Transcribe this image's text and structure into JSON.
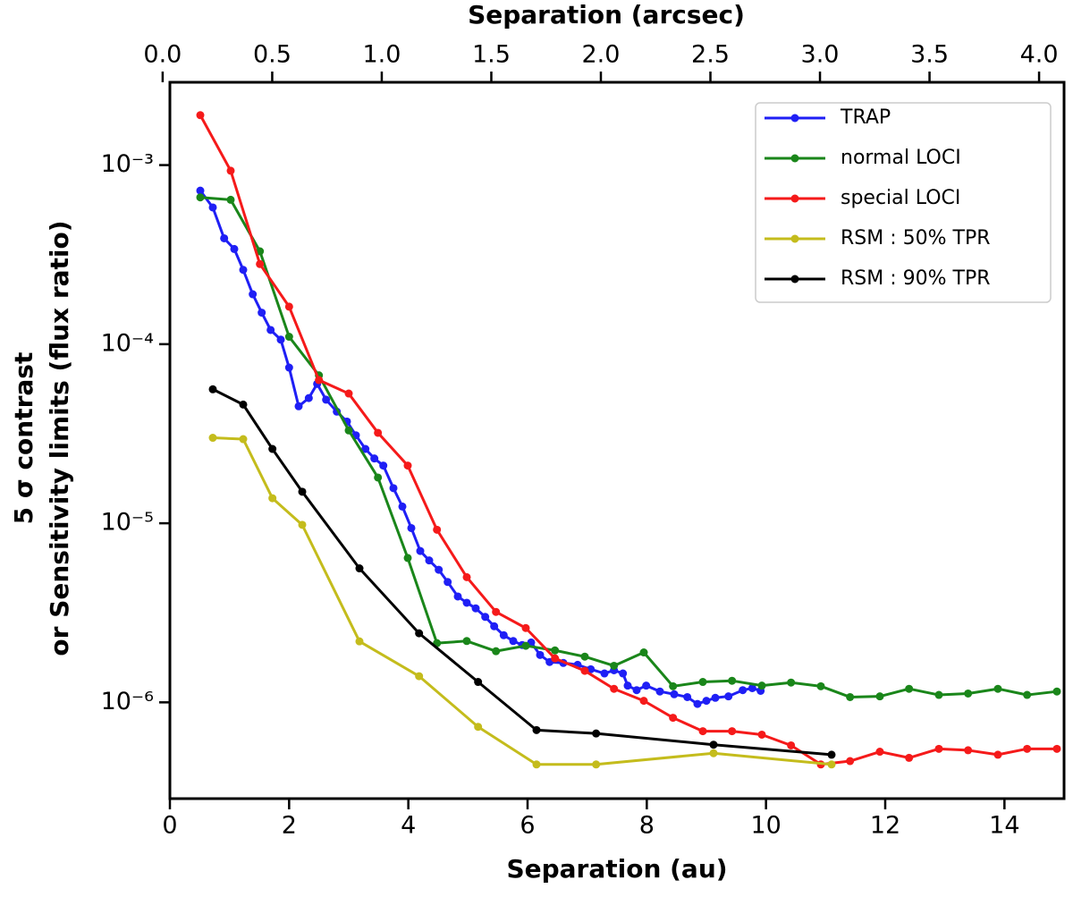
{
  "chart_data": {
    "type": "line",
    "xlabel": "Separation (au)",
    "x2label": "Separation (arcsec)",
    "ylabel": [
      "5 σ contrast",
      "or Sensitivity limits (flux ratio)"
    ],
    "xlim": [
      0,
      15
    ],
    "xticks": [
      0,
      2,
      4,
      6,
      8,
      10,
      12,
      14
    ],
    "x2lim": [
      0.033,
      4.114
    ],
    "x2ticks": [
      {
        "value": 0.0,
        "label": "0.0"
      },
      0.5,
      {
        "value": 1.0,
        "label": "1.0"
      },
      1.5,
      {
        "value": 2.0,
        "label": "2.0"
      },
      2.5,
      {
        "value": 3.0,
        "label": "3.0"
      },
      3.5,
      {
        "value": 4.0,
        "label": "4.0"
      }
    ],
    "ylim": [
      2.9e-07,
      0.0029
    ],
    "yscale": "log",
    "yticks": [
      {
        "value": 0.001,
        "label": "10⁻³"
      },
      {
        "value": 0.0001,
        "label": "10⁻⁴"
      },
      {
        "value": 1e-05,
        "label": "10⁻⁵"
      },
      {
        "value": 1e-06,
        "label": "10⁻⁶"
      }
    ],
    "legend": "upper right",
    "series": [
      {
        "name": "TRAP",
        "color": "#1f1ff5",
        "x": [
          0.51,
          0.72,
          0.91,
          1.08,
          1.23,
          1.39,
          1.54,
          1.69,
          1.86,
          2.0,
          2.16,
          2.33,
          2.47,
          2.62,
          2.8,
          2.97,
          3.12,
          3.28,
          3.43,
          3.58,
          3.75,
          3.9,
          4.05,
          4.2,
          4.35,
          4.51,
          4.66,
          4.83,
          4.98,
          5.13,
          5.29,
          5.44,
          5.6,
          5.76,
          5.91,
          6.06,
          6.21,
          6.37,
          6.6,
          6.84,
          7.06,
          7.29,
          7.45,
          7.6,
          7.68,
          7.83,
          7.99,
          8.22,
          8.46,
          8.68,
          8.85,
          9.0,
          9.15,
          9.37,
          9.61,
          9.77,
          9.91
        ],
        "values": [
          0.00072,
          0.00058,
          0.00039,
          0.00034,
          0.00026,
          0.00019,
          0.00015,
          0.00012,
          0.000106,
          7.4e-05,
          4.5e-05,
          5e-05,
          6e-05,
          4.9e-05,
          4.2e-05,
          3.7e-05,
          3.1e-05,
          2.6e-05,
          2.3e-05,
          2.1e-05,
          1.57e-05,
          1.24e-05,
          9.4e-06,
          7e-06,
          6.2e-06,
          5.5e-06,
          4.7e-06,
          3.9e-06,
          3.6e-06,
          3.35e-06,
          3e-06,
          2.66e-06,
          2.37e-06,
          2.2e-06,
          2.09e-06,
          2.16e-06,
          1.84e-06,
          1.68e-06,
          1.66e-06,
          1.62e-06,
          1.53e-06,
          1.45e-06,
          1.51e-06,
          1.45e-06,
          1.24e-06,
          1.17e-06,
          1.24e-06,
          1.15e-06,
          1.11e-06,
          1.07e-06,
          9.8e-07,
          1.02e-06,
          1.06e-06,
          1.08e-06,
          1.17e-06,
          1.2e-06,
          1.16e-06
        ]
      },
      {
        "name": "normal LOCI",
        "color": "#1a861a",
        "x": [
          0.51,
          1.02,
          1.51,
          2.0,
          2.5,
          3.0,
          3.49,
          3.99,
          4.48,
          4.98,
          5.47,
          5.97,
          6.46,
          6.96,
          7.45,
          7.95,
          8.44,
          8.94,
          9.43,
          9.93,
          10.42,
          10.92,
          11.41,
          11.91,
          12.4,
          12.9,
          13.39,
          13.89,
          14.38,
          14.88
        ],
        "values": [
          0.00066,
          0.00064,
          0.00033,
          0.00011,
          6.7e-05,
          3.3e-05,
          1.8e-05,
          6.4e-06,
          2.14e-06,
          2.2e-06,
          1.93e-06,
          2.07e-06,
          1.95e-06,
          1.8e-06,
          1.6e-06,
          1.9e-06,
          1.23e-06,
          1.3e-06,
          1.32e-06,
          1.24e-06,
          1.29e-06,
          1.23e-06,
          1.07e-06,
          1.08e-06,
          1.19e-06,
          1.1e-06,
          1.12e-06,
          1.19e-06,
          1.1e-06,
          1.15e-06
        ]
      },
      {
        "name": "special LOCI",
        "color": "#f51a1a",
        "x": [
          0.51,
          1.02,
          1.51,
          2.0,
          2.5,
          3.0,
          3.49,
          3.99,
          4.48,
          4.98,
          5.47,
          5.97,
          6.46,
          6.96,
          7.45,
          7.95,
          8.44,
          8.94,
          9.43,
          9.93,
          10.42,
          10.92,
          11.41,
          11.91,
          12.4,
          12.9,
          13.39,
          13.89,
          14.38,
          14.88
        ],
        "values": [
          0.0019,
          0.00093,
          0.00028,
          0.000162,
          6.3e-05,
          5.3e-05,
          3.2e-05,
          2.1e-05,
          9.2e-06,
          5e-06,
          3.2e-06,
          2.6e-06,
          1.76e-06,
          1.5e-06,
          1.19e-06,
          1.02e-06,
          8.2e-07,
          6.9e-07,
          6.9e-07,
          6.6e-07,
          5.75e-07,
          4.5e-07,
          4.7e-07,
          5.3e-07,
          4.9e-07,
          5.5e-07,
          5.4e-07,
          5.1e-07,
          5.5e-07,
          5.5e-07
        ]
      },
      {
        "name": "RSM : 50% TPR",
        "color": "#c4bc1c",
        "x": [
          0.72,
          1.23,
          1.72,
          2.22,
          3.18,
          4.18,
          5.17,
          6.15,
          7.15,
          9.12,
          11.1
        ],
        "values": [
          3e-05,
          2.95e-05,
          1.38e-05,
          9.8e-06,
          2.19e-06,
          1.4e-06,
          7.3e-07,
          4.5e-07,
          4.5e-07,
          5.2e-07,
          4.5e-07
        ]
      },
      {
        "name": "RSM : 90% TPR",
        "color": "#000000",
        "x": [
          0.72,
          1.23,
          1.72,
          2.22,
          3.18,
          4.18,
          5.17,
          6.15,
          7.15,
          9.12,
          11.1
        ],
        "values": [
          5.6e-05,
          4.6e-05,
          2.6e-05,
          1.5e-05,
          5.6e-06,
          2.43e-06,
          1.3e-06,
          7e-07,
          6.7e-07,
          5.8e-07,
          5.1e-07
        ]
      }
    ]
  }
}
